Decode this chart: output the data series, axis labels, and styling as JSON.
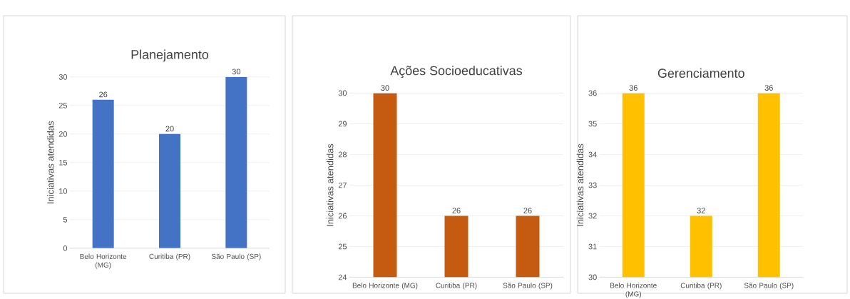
{
  "chart_data": [
    {
      "type": "bar",
      "title": "Planejamento",
      "ylabel": "Iniciativas atendidas",
      "categories": [
        "Belo Horizonte (MG)",
        "Curitiba (PR)",
        "São Paulo (SP)"
      ],
      "values": [
        26,
        20,
        30
      ],
      "color": "#4472c4",
      "ylim": [
        0,
        30
      ],
      "yticks": [
        0,
        5,
        10,
        15,
        20,
        25,
        30
      ],
      "grid": "y",
      "data_labels": true
    },
    {
      "type": "bar",
      "title": "Ações Socioeducativas",
      "ylabel": "Iniciativas atendidas",
      "categories": [
        "Belo Horizonte (MG)",
        "Curitiba (PR)",
        "São Paulo (SP)"
      ],
      "values": [
        30,
        26,
        26
      ],
      "color": "#c55a11",
      "ylim": [
        24,
        30
      ],
      "yticks": [
        24,
        25,
        26,
        27,
        28,
        29,
        30
      ],
      "grid": "y",
      "data_labels": true
    },
    {
      "type": "bar",
      "title": "Gerenciamento",
      "ylabel": "Iniciativas atendidas",
      "categories": [
        "Belo Horizonte (MG)",
        "Curitiba (PR)",
        "São Paulo (SP)"
      ],
      "values": [
        36,
        32,
        36
      ],
      "color": "#ffc000",
      "ylim": [
        30,
        36
      ],
      "yticks": [
        30,
        31,
        32,
        33,
        34,
        35,
        36
      ],
      "grid": "y",
      "data_labels": true
    }
  ]
}
